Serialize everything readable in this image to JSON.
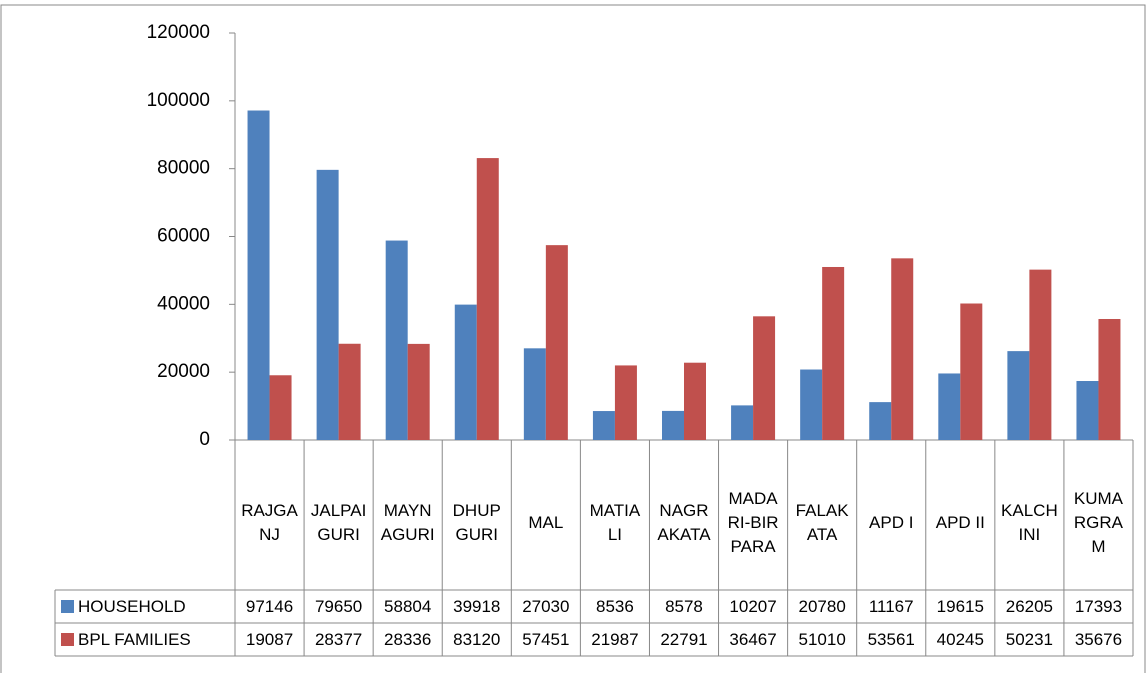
{
  "chart_data": {
    "type": "bar",
    "categories": [
      "RAJGANJ",
      "JALPAIGURI",
      "MAYNAGURI",
      "DHUPGURI",
      "MAL",
      "MATIALI",
      "NAGRAKATA",
      "MADARI-BIRPARA",
      "FALAKATA",
      "APD I",
      "APD II",
      "KALCHINI",
      "KUMARGRAM"
    ],
    "series": [
      {
        "name": "HOUSEHOLD",
        "color": "#4f81bd",
        "values": [
          97146,
          79650,
          58804,
          39918,
          27030,
          8536,
          8578,
          10207,
          20780,
          11167,
          19615,
          26205,
          17393
        ]
      },
      {
        "name": "BPL FAMILIES",
        "color": "#c0504d",
        "values": [
          19087,
          28377,
          28336,
          83120,
          57451,
          21987,
          22791,
          36467,
          51010,
          53561,
          40245,
          50231,
          35676
        ]
      }
    ],
    "ylim": [
      0,
      120000
    ],
    "yticks": [
      0,
      20000,
      40000,
      60000,
      80000,
      100000,
      120000
    ],
    "grid": false
  }
}
